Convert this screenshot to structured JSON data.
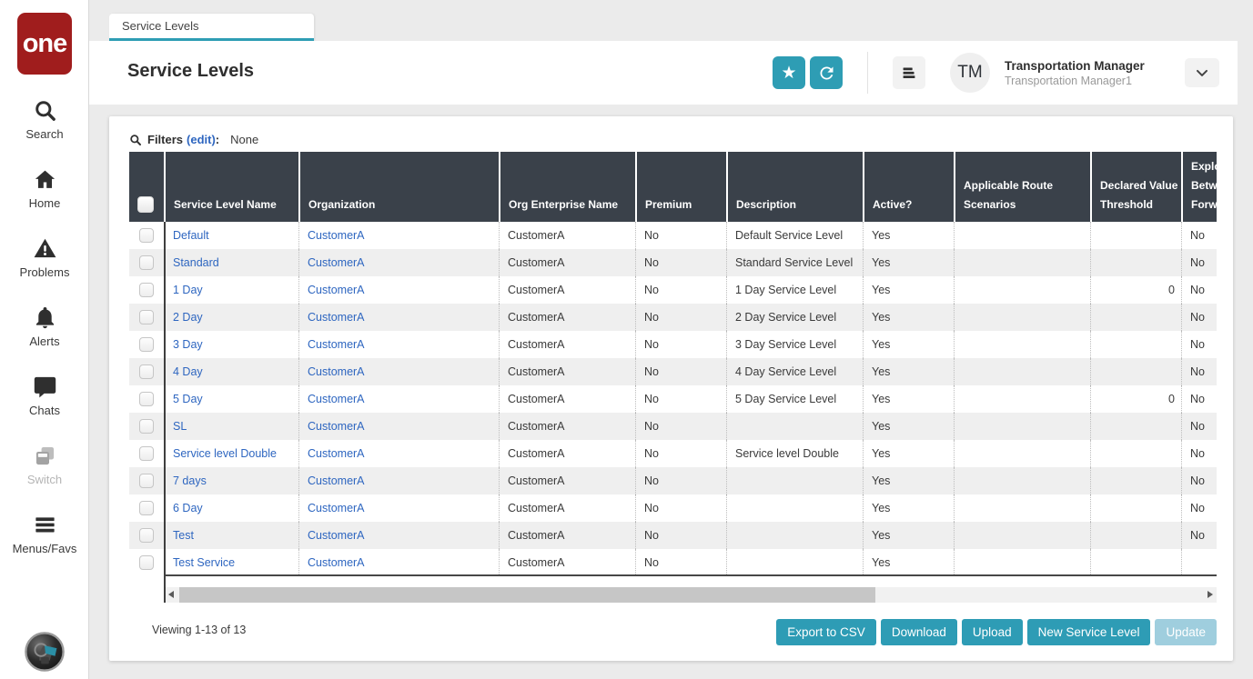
{
  "colors": {
    "accent_teal": "#2e9db4",
    "logo_red": "#a01d1d",
    "link_blue": "#2e66c0",
    "table_header_bg": "#3a414a",
    "disabled_button": "#9fcede"
  },
  "sidebar": {
    "logo_text": "one",
    "items": [
      {
        "id": "search",
        "label": "Search",
        "icon": "search-icon",
        "disabled": false
      },
      {
        "id": "home",
        "label": "Home",
        "icon": "home-icon",
        "disabled": false
      },
      {
        "id": "problems",
        "label": "Problems",
        "icon": "warning-triangle-icon",
        "disabled": false
      },
      {
        "id": "alerts",
        "label": "Alerts",
        "icon": "bell-icon",
        "disabled": false
      },
      {
        "id": "chats",
        "label": "Chats",
        "icon": "chat-bubble-icon",
        "disabled": false
      },
      {
        "id": "switch",
        "label": "Switch",
        "icon": "switch-windows-icon",
        "disabled": true
      },
      {
        "id": "menus-favs",
        "label": "Menus/Favs",
        "icon": "hamburger-icon",
        "disabled": false
      }
    ],
    "assistant_icon": "assistant-avatar-icon"
  },
  "tabs": [
    {
      "label": "Service Levels"
    }
  ],
  "header": {
    "title": "Service Levels",
    "actions": [
      {
        "name": "favorite",
        "icon": "star-icon"
      },
      {
        "name": "refresh",
        "icon": "refresh-icon"
      }
    ],
    "menu_icon": "list-menu-icon",
    "user_initials": "TM",
    "user_name": "Transportation Manager",
    "user_subtitle": "Transportation Manager1",
    "chevron_icon": "chevron-down-icon"
  },
  "filters": {
    "icon": "search-icon",
    "label": "Filters",
    "edit": "(edit)",
    "colon": ":",
    "value": "None"
  },
  "table": {
    "columns": [
      {
        "key": "name",
        "label": "Service Level Name"
      },
      {
        "key": "org",
        "label": "Organization"
      },
      {
        "key": "org_enterprise",
        "label": "Org Enterprise Name"
      },
      {
        "key": "premium",
        "label": "Premium"
      },
      {
        "key": "description",
        "label": "Description"
      },
      {
        "key": "active",
        "label": "Active?"
      },
      {
        "key": "route_scenarios",
        "label": "Applicable Route\nScenarios"
      },
      {
        "key": "declared_value",
        "label": "Declared Value\nThreshold"
      },
      {
        "key": "explore",
        "label": "Explor\nBetwe\nForwa"
      }
    ],
    "rows": [
      {
        "name": "Default",
        "org": "CustomerA",
        "org_enterprise": "CustomerA",
        "premium": "No",
        "description": "Default Service Level",
        "active": "Yes",
        "route_scenarios": "",
        "declared_value": "",
        "explore": "No"
      },
      {
        "name": "Standard",
        "org": "CustomerA",
        "org_enterprise": "CustomerA",
        "premium": "No",
        "description": "Standard Service Level",
        "active": "Yes",
        "route_scenarios": "",
        "declared_value": "",
        "explore": "No"
      },
      {
        "name": "1 Day",
        "org": "CustomerA",
        "org_enterprise": "CustomerA",
        "premium": "No",
        "description": "1 Day Service Level",
        "active": "Yes",
        "route_scenarios": "",
        "declared_value": "0",
        "explore": "No"
      },
      {
        "name": "2 Day",
        "org": "CustomerA",
        "org_enterprise": "CustomerA",
        "premium": "No",
        "description": "2 Day Service Level",
        "active": "Yes",
        "route_scenarios": "",
        "declared_value": "",
        "explore": "No"
      },
      {
        "name": "3 Day",
        "org": "CustomerA",
        "org_enterprise": "CustomerA",
        "premium": "No",
        "description": "3 Day Service Level",
        "active": "Yes",
        "route_scenarios": "",
        "declared_value": "",
        "explore": "No"
      },
      {
        "name": "4 Day",
        "org": "CustomerA",
        "org_enterprise": "CustomerA",
        "premium": "No",
        "description": "4 Day Service Level",
        "active": "Yes",
        "route_scenarios": "",
        "declared_value": "",
        "explore": "No"
      },
      {
        "name": "5 Day",
        "org": "CustomerA",
        "org_enterprise": "CustomerA",
        "premium": "No",
        "description": "5 Day Service Level",
        "active": "Yes",
        "route_scenarios": "",
        "declared_value": "0",
        "explore": "No"
      },
      {
        "name": "SL",
        "org": "CustomerA",
        "org_enterprise": "CustomerA",
        "premium": "No",
        "description": "",
        "active": "Yes",
        "route_scenarios": "",
        "declared_value": "",
        "explore": "No"
      },
      {
        "name": "Service level Double",
        "org": "CustomerA",
        "org_enterprise": "CustomerA",
        "premium": "No",
        "description": "Service level Double",
        "active": "Yes",
        "route_scenarios": "",
        "declared_value": "",
        "explore": "No"
      },
      {
        "name": "7 days",
        "org": "CustomerA",
        "org_enterprise": "CustomerA",
        "premium": "No",
        "description": "",
        "active": "Yes",
        "route_scenarios": "",
        "declared_value": "",
        "explore": "No"
      },
      {
        "name": "6 Day",
        "org": "CustomerA",
        "org_enterprise": "CustomerA",
        "premium": "No",
        "description": "",
        "active": "Yes",
        "route_scenarios": "",
        "declared_value": "",
        "explore": "No"
      },
      {
        "name": "Test",
        "org": "CustomerA",
        "org_enterprise": "CustomerA",
        "premium": "No",
        "description": "",
        "active": "Yes",
        "route_scenarios": "",
        "declared_value": "",
        "explore": "No"
      },
      {
        "name": "Test Service",
        "org": "CustomerA",
        "org_enterprise": "CustomerA",
        "premium": "No",
        "description": "",
        "active": "Yes",
        "route_scenarios": "",
        "declared_value": "",
        "explore": ""
      }
    ]
  },
  "footer": {
    "viewing": "Viewing 1-13 of 13",
    "buttons": [
      {
        "label": "Export to CSV",
        "disabled": false
      },
      {
        "label": "Download",
        "disabled": false
      },
      {
        "label": "Upload",
        "disabled": false
      },
      {
        "label": "New Service Level",
        "disabled": false
      },
      {
        "label": "Update",
        "disabled": true
      }
    ]
  }
}
